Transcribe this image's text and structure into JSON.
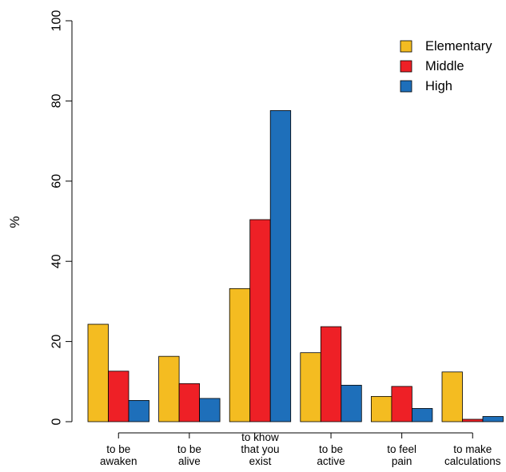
{
  "chart_data": {
    "type": "bar",
    "ylabel": "%",
    "ylim": [
      0,
      100
    ],
    "yticks": [
      0,
      20,
      40,
      60,
      80,
      100
    ],
    "grid": false,
    "legend_position": "top-right",
    "categories": [
      [
        "to be",
        "awaken"
      ],
      [
        "to be",
        "alive"
      ],
      [
        "to know",
        "that you",
        "exist"
      ],
      [
        "to be",
        "active"
      ],
      [
        "to feel",
        "pain"
      ],
      [
        "to make",
        "calculations"
      ]
    ],
    "series": [
      {
        "name": "Elementary",
        "color": "#F4BC21",
        "values": [
          24.3,
          16.3,
          33.2,
          17.2,
          6.3,
          12.4
        ]
      },
      {
        "name": "Middle",
        "color": "#EE2026",
        "values": [
          12.6,
          9.5,
          50.4,
          23.7,
          8.8,
          0.6
        ]
      },
      {
        "name": "High",
        "color": "#1E6FBA",
        "values": [
          5.3,
          5.8,
          77.6,
          9.1,
          3.3,
          1.3
        ]
      }
    ]
  }
}
